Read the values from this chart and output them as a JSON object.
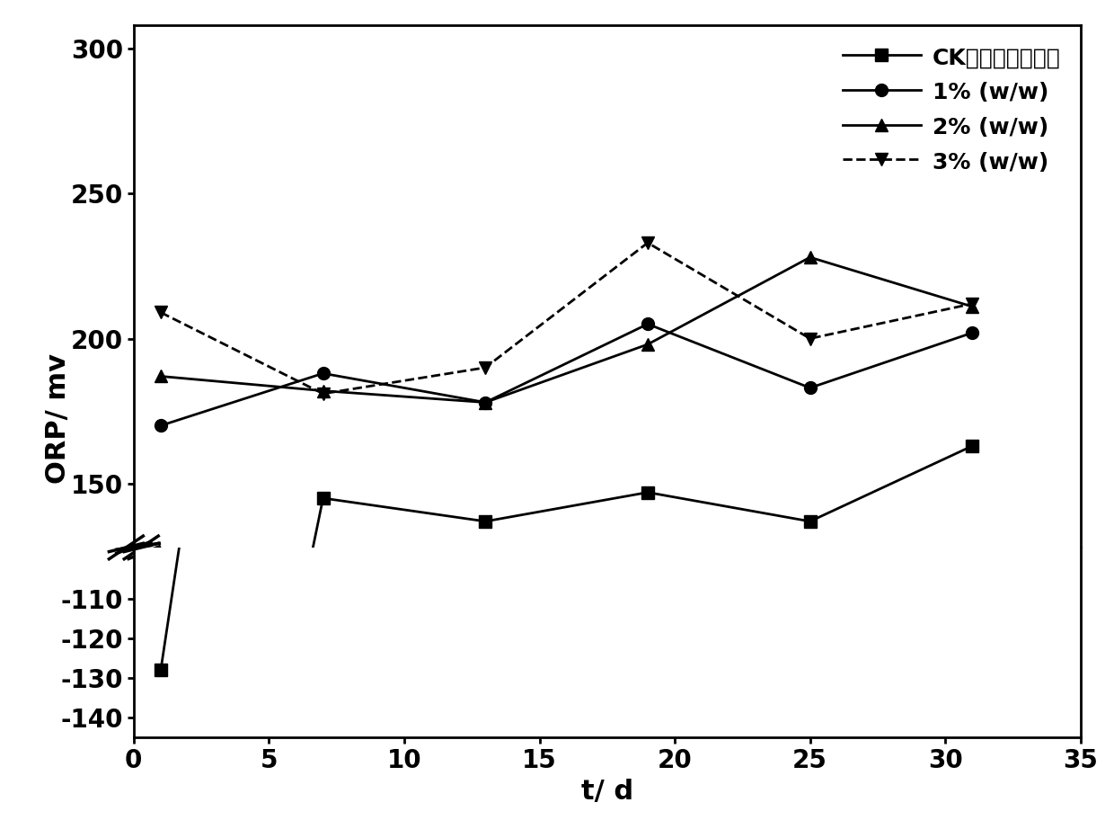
{
  "x": [
    1,
    7,
    13,
    19,
    25,
    31
  ],
  "series": [
    {
      "label": "CK（空白对照组）",
      "values": [
        -128,
        145,
        137,
        147,
        137,
        163
      ],
      "marker": "s",
      "linestyle": "-",
      "color": "#000000"
    },
    {
      "label": "1% (w/w)",
      "values": [
        170,
        188,
        178,
        205,
        183,
        202
      ],
      "marker": "o",
      "linestyle": "-",
      "color": "#000000"
    },
    {
      "label": "2% (w/w)",
      "values": [
        187,
        182,
        178,
        198,
        228,
        211
      ],
      "marker": "^",
      "linestyle": "-",
      "color": "#000000"
    },
    {
      "label": "3% (w/w)",
      "values": [
        209,
        181,
        190,
        233,
        200,
        212
      ],
      "marker": "v",
      "linestyle": "--",
      "color": "#000000"
    }
  ],
  "xlabel": "t/ d",
  "ylabel": "ORP/ mv",
  "xlim": [
    0,
    35
  ],
  "background_color": "#ffffff"
}
